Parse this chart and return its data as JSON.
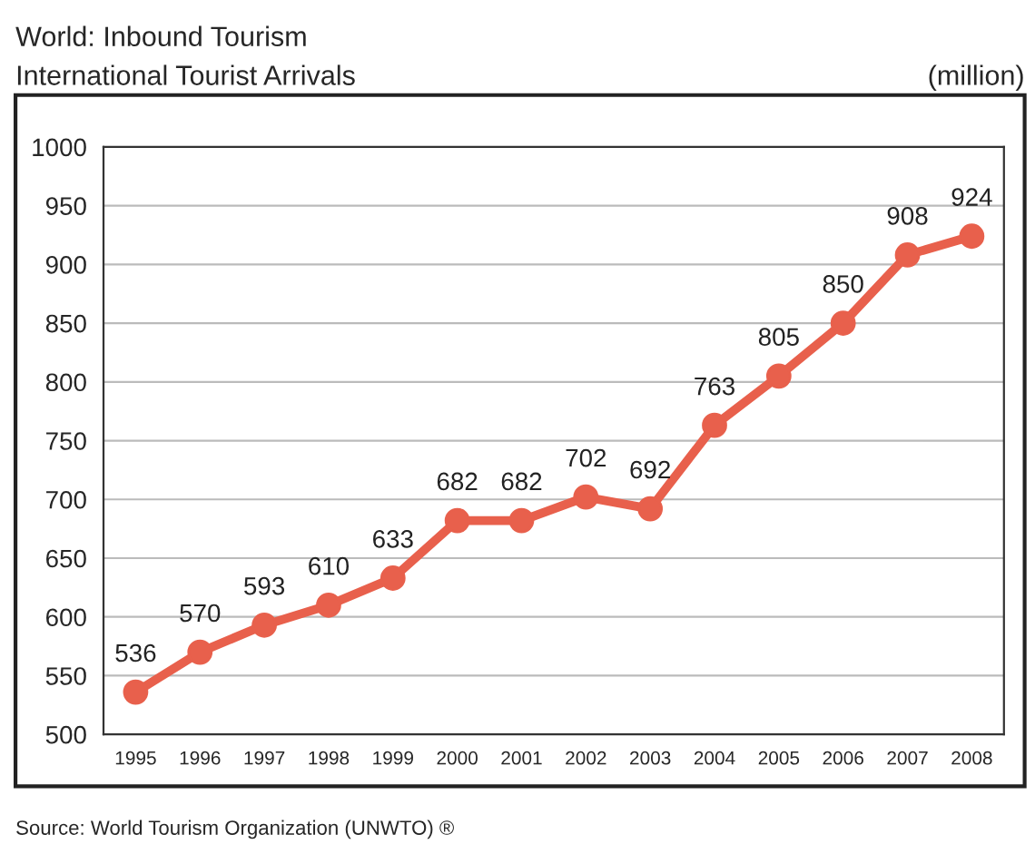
{
  "chart_data": {
    "type": "line",
    "title": "World: Inbound Tourism",
    "subtitle": "International Tourist Arrivals",
    "ylabel": "(million)",
    "categories": [
      "1995",
      "1996",
      "1997",
      "1998",
      "1999",
      "2000",
      "2001",
      "2002",
      "2003",
      "2004",
      "2005",
      "2006",
      "2007",
      "2008"
    ],
    "series": [
      {
        "color": "#e8604c",
        "values": [
          536,
          570,
          593,
          610,
          633,
          682,
          682,
          702,
          692,
          763,
          805,
          850,
          908,
          924
        ]
      }
    ],
    "ylim": [
      500,
      1000
    ],
    "yticks": [
      500,
      550,
      600,
      650,
      700,
      750,
      800,
      850,
      900,
      950,
      1000
    ],
    "grid": "y",
    "marker": "circle",
    "line_style": "solid",
    "data_labels": true,
    "annotations": [
      "Source: World Tourism Organization (UNWTO) ®"
    ]
  }
}
